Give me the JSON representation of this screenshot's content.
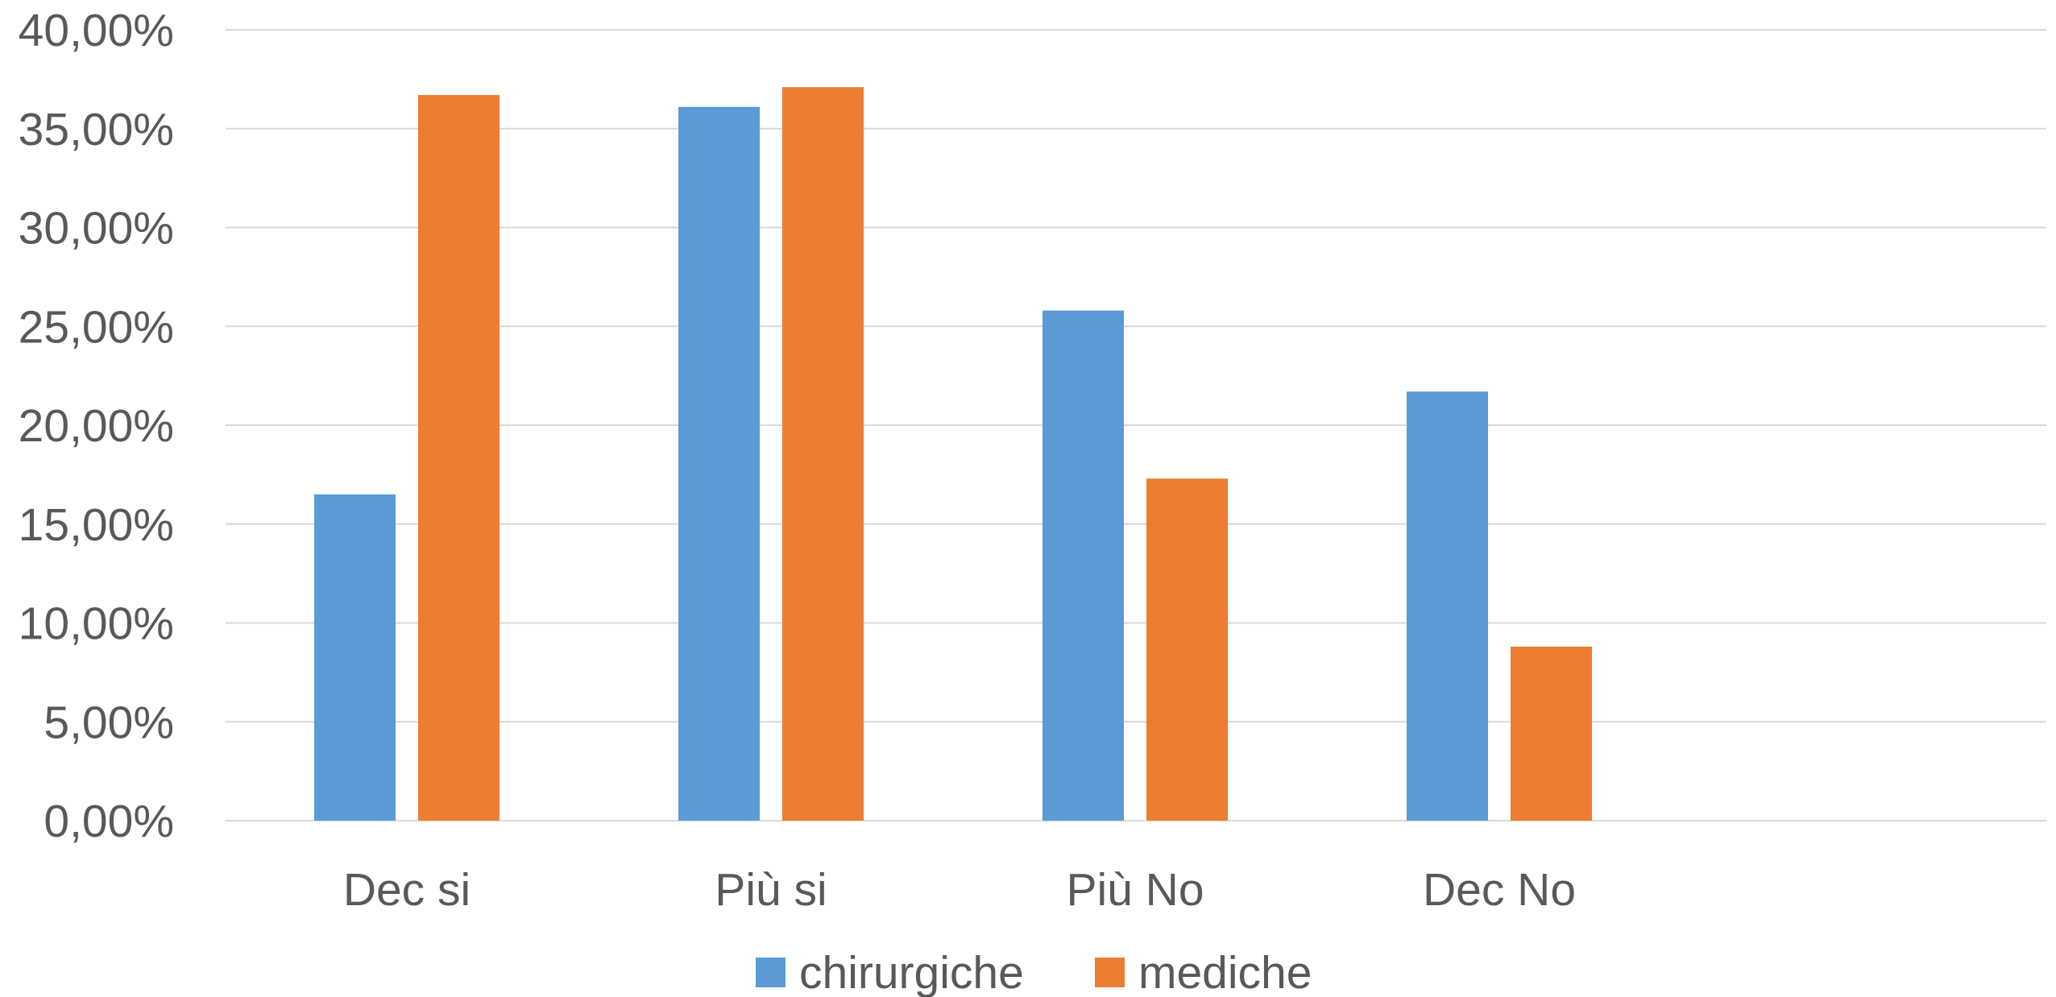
{
  "chart_data": {
    "type": "bar",
    "categories": [
      "Dec si",
      "Più si",
      "Più No",
      "Dec No"
    ],
    "series": [
      {
        "name": "chirurgiche",
        "color": "#5B9BD5",
        "values": [
          16.5,
          36.1,
          25.8,
          21.7
        ]
      },
      {
        "name": "mediche",
        "color": "#ED7D31",
        "values": [
          36.7,
          37.1,
          17.3,
          8.8
        ]
      }
    ],
    "ylim": [
      0,
      40
    ],
    "y_ticks": [
      0,
      5,
      10,
      15,
      20,
      25,
      30,
      35,
      40
    ],
    "y_tick_labels": [
      "0,00%",
      "5,00%",
      "10,00%",
      "15,00%",
      "20,00%",
      "25,00%",
      "30,00%",
      "35,00%",
      "40,00%"
    ],
    "grid": true,
    "gridline_color": "#D9D9D9",
    "text_color": "#595959",
    "legend_position": "bottom-center",
    "title": "",
    "xlabel": "",
    "ylabel": ""
  }
}
